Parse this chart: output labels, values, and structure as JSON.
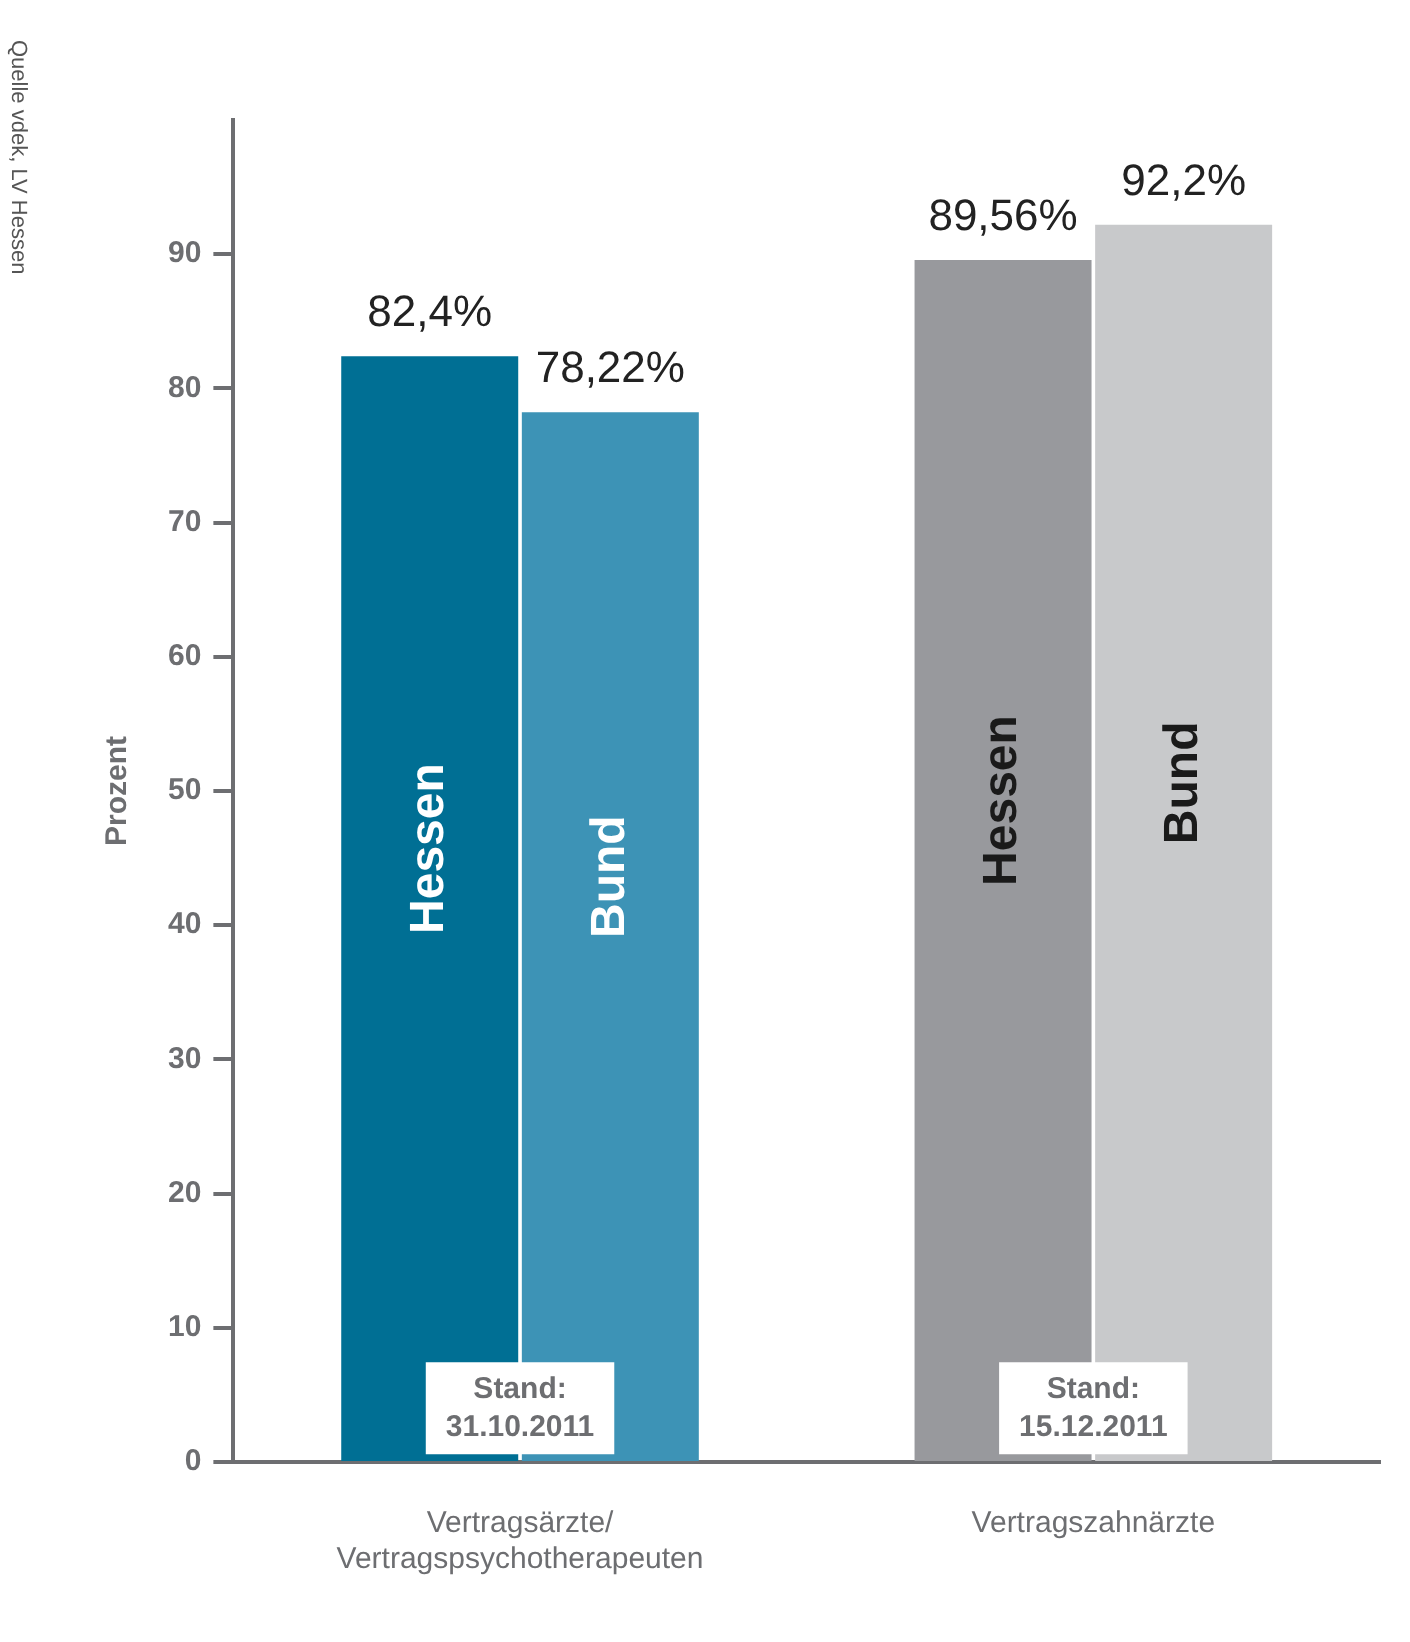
{
  "chart_data": {
    "type": "bar",
    "ylabel": "Prozent",
    "categories": [
      "Vertragsärzte/Vertragspsychotherapeuten",
      "Vertragszahnärzte"
    ],
    "series": [
      {
        "name": "Hessen",
        "colors": [
          "#006f94",
          "#98999d"
        ],
        "values": [
          82.4,
          89.56
        ],
        "value_labels": [
          "82,4%",
          "89,56%"
        ]
      },
      {
        "name": "Bund",
        "colors": [
          "#3d93b6",
          "#c8c9cb"
        ],
        "values": [
          78.22,
          92.2
        ],
        "value_labels": [
          "78,22%",
          "92,2%"
        ]
      }
    ],
    "ylim": [
      0,
      100
    ],
    "yticks": [
      0,
      10,
      20,
      30,
      40,
      50,
      60,
      70,
      80,
      90
    ],
    "grid": false,
    "legend": false,
    "annotations": [
      {
        "text": "Stand:\n31.10.2011",
        "x": "Vertragsärzte/Vertragspsychotherapeuten",
        "y": 4
      },
      {
        "text": "Stand:\n15.12.2011",
        "x": "Vertragszahnärzte",
        "y": 4
      },
      "Quelle vdek, LV Hessen"
    ]
  }
}
